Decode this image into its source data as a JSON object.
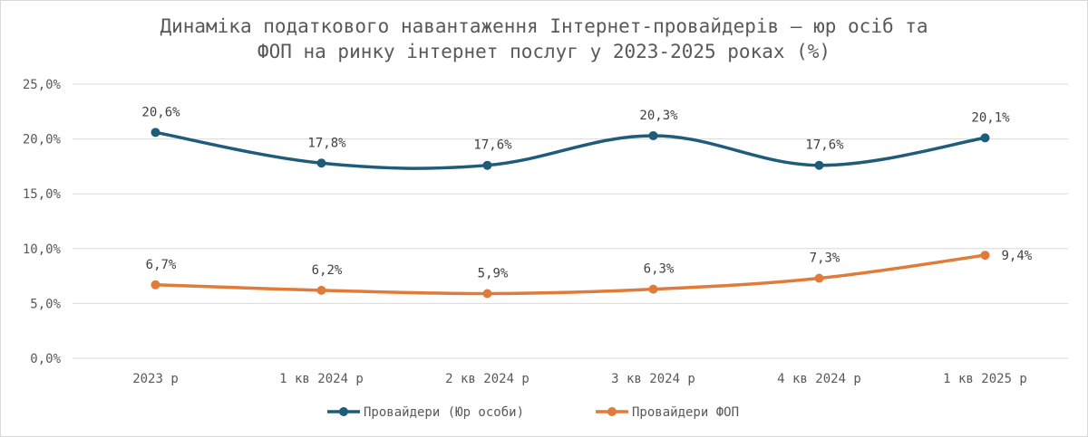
{
  "chart_data": {
    "type": "line",
    "title_lines": [
      "Динаміка податкового навантаження Інтернет-провайдерів – юр осіб та",
      "ФОП на ринку інтернет послуг у 2023-2025 роках (%)"
    ],
    "categories": [
      "2023 р",
      "1 кв 2024 р",
      "2 кв 2024 р",
      "3 кв 2024 р",
      "4 кв 2024 р",
      "1 кв 2025 р"
    ],
    "y_ticks": [
      "0,0%",
      "5,0%",
      "10,0%",
      "15,0%",
      "20,0%",
      "25,0%"
    ],
    "ylim": [
      0,
      25
    ],
    "grid": true,
    "legend_position": "bottom",
    "series": [
      {
        "name": "Провайдери (Юр особи)",
        "color": "#1f5c7a",
        "values": [
          20.6,
          17.8,
          17.6,
          20.3,
          17.6,
          20.1
        ],
        "labels": [
          "20,6%",
          "17,8%",
          "17,6%",
          "20,3%",
          "17,6%",
          "20,1%"
        ]
      },
      {
        "name": "Провайдери ФОП",
        "color": "#e07b39",
        "values": [
          6.7,
          6.2,
          5.9,
          6.3,
          7.3,
          9.4
        ],
        "labels": [
          "6,7%",
          "6,2%",
          "5,9%",
          "6,3%",
          "7,3%",
          "9,4%"
        ]
      }
    ]
  }
}
